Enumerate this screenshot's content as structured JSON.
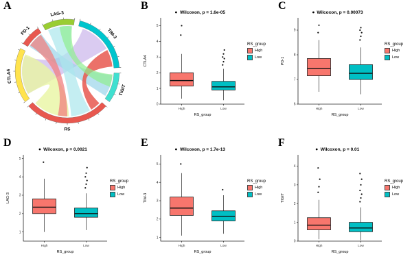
{
  "figure": {
    "background": "#ffffff"
  },
  "colors": {
    "high": "#F8766D",
    "low": "#00BFC4",
    "axis": "#222222",
    "text": "#000000"
  },
  "legend": {
    "title": "RS_group",
    "items": [
      {
        "label": "High",
        "color": "#F8766D"
      },
      {
        "label": "Low",
        "color": "#00BFC4"
      }
    ]
  },
  "chart_data": [
    {
      "panel": "A",
      "type": "chord",
      "title": "",
      "groups": [
        {
          "name": "LAG-3",
          "color": "#9ACD32",
          "angles": [
            -28,
            8
          ]
        },
        {
          "name": "TIM-3",
          "color": "#00C5CD",
          "angles": [
            14,
            86
          ]
        },
        {
          "name": "TIGIT",
          "color": "#40E0D0",
          "angles": [
            92,
            126
          ]
        },
        {
          "name": "RS",
          "color": "#E8584F",
          "angles": [
            132,
            228
          ]
        },
        {
          "name": "CTLA4",
          "color": "#FFE34D",
          "angles": [
            234,
            296
          ]
        },
        {
          "name": "PD-1",
          "color": "#E8584F",
          "angles": [
            302,
            326
          ]
        }
      ],
      "links": [
        {
          "source": [
            "CTLA4",
            240,
            290
          ],
          "target": [
            "TIM-3",
            20,
            60
          ],
          "color": "#CDB9EC",
          "opacity": 0.75
        },
        {
          "source": [
            "PD-1",
            303,
            325
          ],
          "target": [
            "TIGIT",
            95,
            123
          ],
          "color": "#9AD4EA",
          "opacity": 0.7
        },
        {
          "source": [
            "LAG-3",
            -25,
            5
          ],
          "target": [
            "RS",
            150,
            175
          ],
          "color": "#ABE7EC",
          "opacity": 0.7
        },
        {
          "source": [
            "CTLA4",
            240,
            292
          ],
          "target": [
            "RS",
            178,
            225
          ],
          "color": "#E9F5A3",
          "opacity": 0.8
        },
        {
          "source": [
            "RS",
            135,
            148
          ],
          "target": [
            "TIM-3",
            62,
            84
          ],
          "color": "#E8584F",
          "opacity": 0.85
        },
        {
          "source": [
            "PD-1",
            305,
            324
          ],
          "target": [
            "RS",
            180,
            192
          ],
          "color": "#F08080",
          "opacity": 0.75
        },
        {
          "source": [
            "LAG-3",
            -10,
            6
          ],
          "target": [
            "TIGIT",
            94,
            110
          ],
          "color": "#90EE90",
          "opacity": 0.7
        }
      ]
    },
    {
      "panel": "B",
      "type": "box",
      "title": "Wilcoxon, p = 1.6e-05",
      "ylabel": "CTLA4",
      "xlabel": "RS_group",
      "categories": [
        "High",
        "Low"
      ],
      "ylim": [
        0,
        5.5
      ],
      "yticks": [
        0,
        1,
        2,
        3,
        4,
        5
      ],
      "series": [
        {
          "name": "High",
          "whisker_low": 0.35,
          "q1": 1.15,
          "median": 1.5,
          "q3": 2.0,
          "whisker_high": 3.2,
          "outliers": [
            4.4,
            5.0
          ]
        },
        {
          "name": "Low",
          "whisker_low": 0.25,
          "q1": 0.9,
          "median": 1.1,
          "q3": 1.45,
          "whisker_high": 2.25,
          "outliers": [
            2.5,
            2.7,
            2.9,
            3.0,
            3.2,
            3.45
          ]
        }
      ]
    },
    {
      "panel": "C",
      "type": "box",
      "title": "Wilcoxon, p = 0.00073",
      "ylabel": "PD-1",
      "xlabel": "RS_group",
      "categories": [
        "High",
        "Low"
      ],
      "ylim": [
        6,
        9.5
      ],
      "yticks": [
        6,
        7,
        8,
        9
      ],
      "series": [
        {
          "name": "High",
          "whisker_low": 6.5,
          "q1": 7.15,
          "median": 7.45,
          "q3": 7.85,
          "whisker_high": 8.6,
          "outliers": [
            8.9,
            9.2
          ]
        },
        {
          "name": "Low",
          "whisker_low": 6.4,
          "q1": 7.0,
          "median": 7.25,
          "q3": 7.6,
          "whisker_high": 8.3,
          "outliers": [
            8.6,
            8.75,
            8.9,
            9.0,
            9.1
          ]
        }
      ]
    },
    {
      "panel": "D",
      "type": "box",
      "title": "Wilcoxon, p = 0.0021",
      "ylabel": "LAG-3",
      "xlabel": "RS_group",
      "categories": [
        "High",
        "Low"
      ],
      "ylim": [
        0.5,
        5.2
      ],
      "yticks": [
        1,
        2,
        3,
        4,
        5
      ],
      "series": [
        {
          "name": "High",
          "whisker_low": 1.0,
          "q1": 2.0,
          "median": 2.35,
          "q3": 2.8,
          "whisker_high": 3.9,
          "outliers": [
            4.8
          ]
        },
        {
          "name": "Low",
          "whisker_low": 1.1,
          "q1": 1.8,
          "median": 2.0,
          "q3": 2.3,
          "whisker_high": 3.1,
          "outliers": [
            3.4,
            3.6,
            3.8,
            4.0,
            4.2,
            4.5
          ]
        }
      ]
    },
    {
      "panel": "E",
      "type": "box",
      "title": "Wilcoxon, p = 1.7e-13",
      "ylabel": "TIM-3",
      "xlabel": "RS_group",
      "categories": [
        "High",
        "Low"
      ],
      "ylim": [
        0.8,
        5.5
      ],
      "yticks": [
        1,
        2,
        3,
        4,
        5
      ],
      "series": [
        {
          "name": "High",
          "whisker_low": 1.1,
          "q1": 2.2,
          "median": 2.6,
          "q3": 3.2,
          "whisker_high": 4.5,
          "outliers": [
            5.0
          ]
        },
        {
          "name": "Low",
          "whisker_low": 1.2,
          "q1": 1.9,
          "median": 2.15,
          "q3": 2.45,
          "whisker_high": 3.3,
          "outliers": [
            3.6
          ]
        }
      ]
    },
    {
      "panel": "F",
      "type": "box",
      "title": "Wilcoxon, p = 0.01",
      "ylabel": "TIGIT",
      "xlabel": "RS_group",
      "categories": [
        "High",
        "Low"
      ],
      "ylim": [
        0,
        4.6
      ],
      "yticks": [
        0,
        1,
        2,
        3,
        4
      ],
      "series": [
        {
          "name": "High",
          "whisker_low": 0.1,
          "q1": 0.6,
          "median": 0.85,
          "q3": 1.25,
          "whisker_high": 2.2,
          "outliers": [
            2.6,
            2.9,
            3.3,
            3.9
          ]
        },
        {
          "name": "Low",
          "whisker_low": 0.05,
          "q1": 0.5,
          "median": 0.7,
          "q3": 1.0,
          "whisker_high": 1.8,
          "outliers": [
            2.1,
            2.3,
            2.5,
            2.7,
            3.0,
            3.3,
            3.6
          ]
        }
      ]
    }
  ]
}
